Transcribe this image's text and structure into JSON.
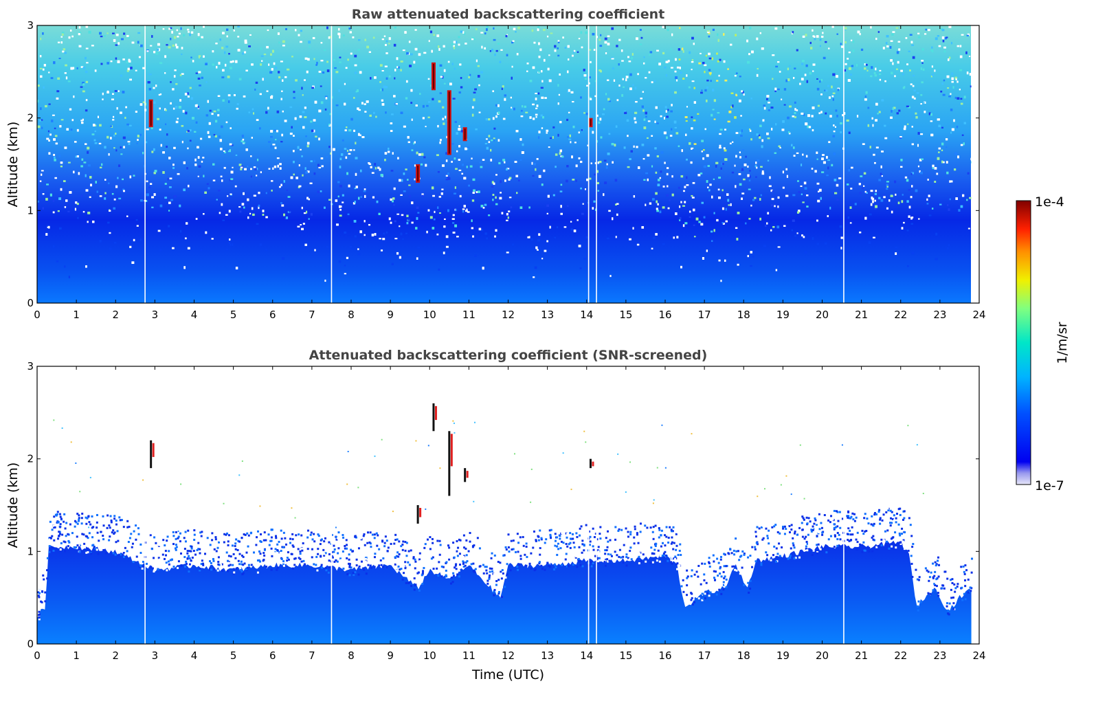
{
  "chart_data": [
    {
      "type": "heatmap",
      "title": "Raw attenuated backscattering coefficient",
      "xlabel": "",
      "ylabel": "Altitude (km)",
      "xlim": [
        0,
        24
      ],
      "ylim": [
        0,
        3
      ],
      "x_ticks": [
        "0",
        "1",
        "2",
        "3",
        "4",
        "5",
        "6",
        "7",
        "8",
        "9",
        "10",
        "11",
        "12",
        "13",
        "14",
        "15",
        "16",
        "17",
        "18",
        "19",
        "20",
        "21",
        "22",
        "23",
        "24"
      ],
      "y_ticks": [
        "0",
        "1",
        "2",
        "3"
      ],
      "data_end_time": 23.8,
      "data_gaps_time": [
        2.75,
        7.5,
        14.05,
        14.25,
        20.55
      ],
      "boundary_layer_top_km": [
        [
          0,
          1.0
        ],
        [
          4,
          0.95
        ],
        [
          8,
          0.9
        ],
        [
          10,
          0.8
        ],
        [
          12,
          0.9
        ],
        [
          16,
          1.0
        ],
        [
          17,
          0.5
        ],
        [
          18,
          0.7
        ],
        [
          20,
          1.0
        ],
        [
          22,
          1.0
        ],
        [
          23.8,
          1.0
        ]
      ],
      "aerosol_plume_features": [
        {
          "time": 2.9,
          "altitude_km": [
            1.9,
            2.2
          ],
          "level": "1e-4"
        },
        {
          "time": 9.7,
          "altitude_km": [
            1.3,
            1.5
          ],
          "level": "1e-4"
        },
        {
          "time": 10.1,
          "altitude_km": [
            2.3,
            2.6
          ],
          "level": "1e-4"
        },
        {
          "time": 10.5,
          "altitude_km": [
            1.6,
            2.3
          ],
          "level": "1e-4"
        },
        {
          "time": 10.9,
          "altitude_km": [
            1.75,
            1.9
          ],
          "level": "1e-4"
        },
        {
          "time": 14.1,
          "altitude_km": [
            1.9,
            2.0
          ],
          "level": "1e-4"
        }
      ],
      "colorbar": {
        "min_label": "1e-7",
        "max_label": "1e-4",
        "label": "1/m/sr",
        "scale": "log",
        "colormap": "jet"
      }
    },
    {
      "type": "heatmap",
      "title": "Attenuated backscattering coefficient (SNR-screened)",
      "xlabel": "Time (UTC)",
      "ylabel": "Altitude (km)",
      "xlim": [
        0,
        24
      ],
      "ylim": [
        0,
        3
      ],
      "x_ticks": [
        "0",
        "1",
        "2",
        "3",
        "4",
        "5",
        "6",
        "7",
        "8",
        "9",
        "10",
        "11",
        "12",
        "13",
        "14",
        "15",
        "16",
        "17",
        "18",
        "19",
        "20",
        "21",
        "22",
        "23",
        "24"
      ],
      "y_ticks": [
        "0",
        "1",
        "2",
        "3"
      ],
      "data_end_time": 23.8,
      "screened_top_km": [
        [
          0,
          0.3
        ],
        [
          0.2,
          0.4
        ],
        [
          0.3,
          1.05
        ],
        [
          1,
          1.05
        ],
        [
          2,
          1.0
        ],
        [
          3,
          0.8
        ],
        [
          4,
          0.85
        ],
        [
          5,
          0.8
        ],
        [
          6,
          0.85
        ],
        [
          7,
          0.85
        ],
        [
          8,
          0.8
        ],
        [
          9,
          0.85
        ],
        [
          9.7,
          0.6
        ],
        [
          10,
          0.8
        ],
        [
          10.5,
          0.7
        ],
        [
          11,
          0.85
        ],
        [
          11.8,
          0.5
        ],
        [
          12,
          0.85
        ],
        [
          13,
          0.85
        ],
        [
          14,
          0.9
        ],
        [
          15,
          0.9
        ],
        [
          16,
          0.95
        ],
        [
          16.3,
          0.85
        ],
        [
          16.5,
          0.4
        ],
        [
          17,
          0.55
        ],
        [
          17.5,
          0.6
        ],
        [
          17.8,
          0.85
        ],
        [
          18.1,
          0.6
        ],
        [
          18.3,
          0.9
        ],
        [
          19,
          0.95
        ],
        [
          20,
          1.05
        ],
        [
          21,
          1.05
        ],
        [
          22,
          1.1
        ],
        [
          22.2,
          1.0
        ],
        [
          22.4,
          0.4
        ],
        [
          22.6,
          0.5
        ],
        [
          22.9,
          0.6
        ],
        [
          23.2,
          0.35
        ],
        [
          23.5,
          0.5
        ],
        [
          23.8,
          0.6
        ]
      ],
      "colorbar": {
        "min_label": "1e-7",
        "max_label": "1e-4",
        "label": "1/m/sr",
        "scale": "log",
        "colormap": "jet"
      }
    }
  ]
}
